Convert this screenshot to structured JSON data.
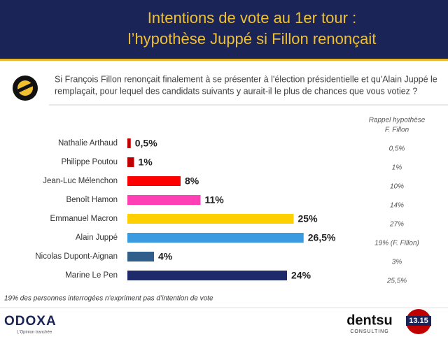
{
  "header": {
    "title_lines": [
      "Intentions de vote au 1er tour :",
      "l’hypothèse Juppé si Fillon renonçait"
    ]
  },
  "question_lines": [
    "Si François Fillon renonçait finalement à se présenter à l'élection présidentielle et qu'Alain Juppé le",
    "remplaçait, pour lequel des candidats suivants y aurait-il le plus de chances que vous votiez ?"
  ],
  "chart_data": {
    "type": "bar",
    "orientation": "horizontal",
    "categories": [
      "Nathalie Arthaud",
      "Philippe Poutou",
      "Jean-Luc Mélenchon",
      "Benoît Hamon",
      "Emmanuel Macron",
      "Alain Juppé",
      "Nicolas Dupont-Aignan",
      "Marine Le Pen"
    ],
    "values": [
      0.5,
      1,
      8,
      11,
      25,
      26.5,
      4,
      24
    ],
    "value_labels": [
      "0,5%",
      "1%",
      "8%",
      "11%",
      "25%",
      "26,5%",
      "4%",
      "24%"
    ],
    "colors": [
      "#c00000",
      "#c00000",
      "#ff0000",
      "#ff40b4",
      "#ffd000",
      "#3b9be0",
      "#2f5f8a",
      "#1f2a6b"
    ]
  },
  "recall": {
    "title_lines": [
      "Rappel hypothèse",
      "F. Fillon"
    ],
    "values": [
      "0,5%",
      "1%",
      "10%",
      "14%",
      "27%",
      "19% (F. Fillon)",
      "3%",
      "25,5%"
    ]
  },
  "footer": {
    "note": "19% des personnes interrogées n’expriment pas d’intention de vote",
    "brand": "ODOXA",
    "tagline": "L'Opinion tranchée",
    "partner": "dentsu",
    "partner_sub": "CONSULTING",
    "media": "13.15"
  }
}
